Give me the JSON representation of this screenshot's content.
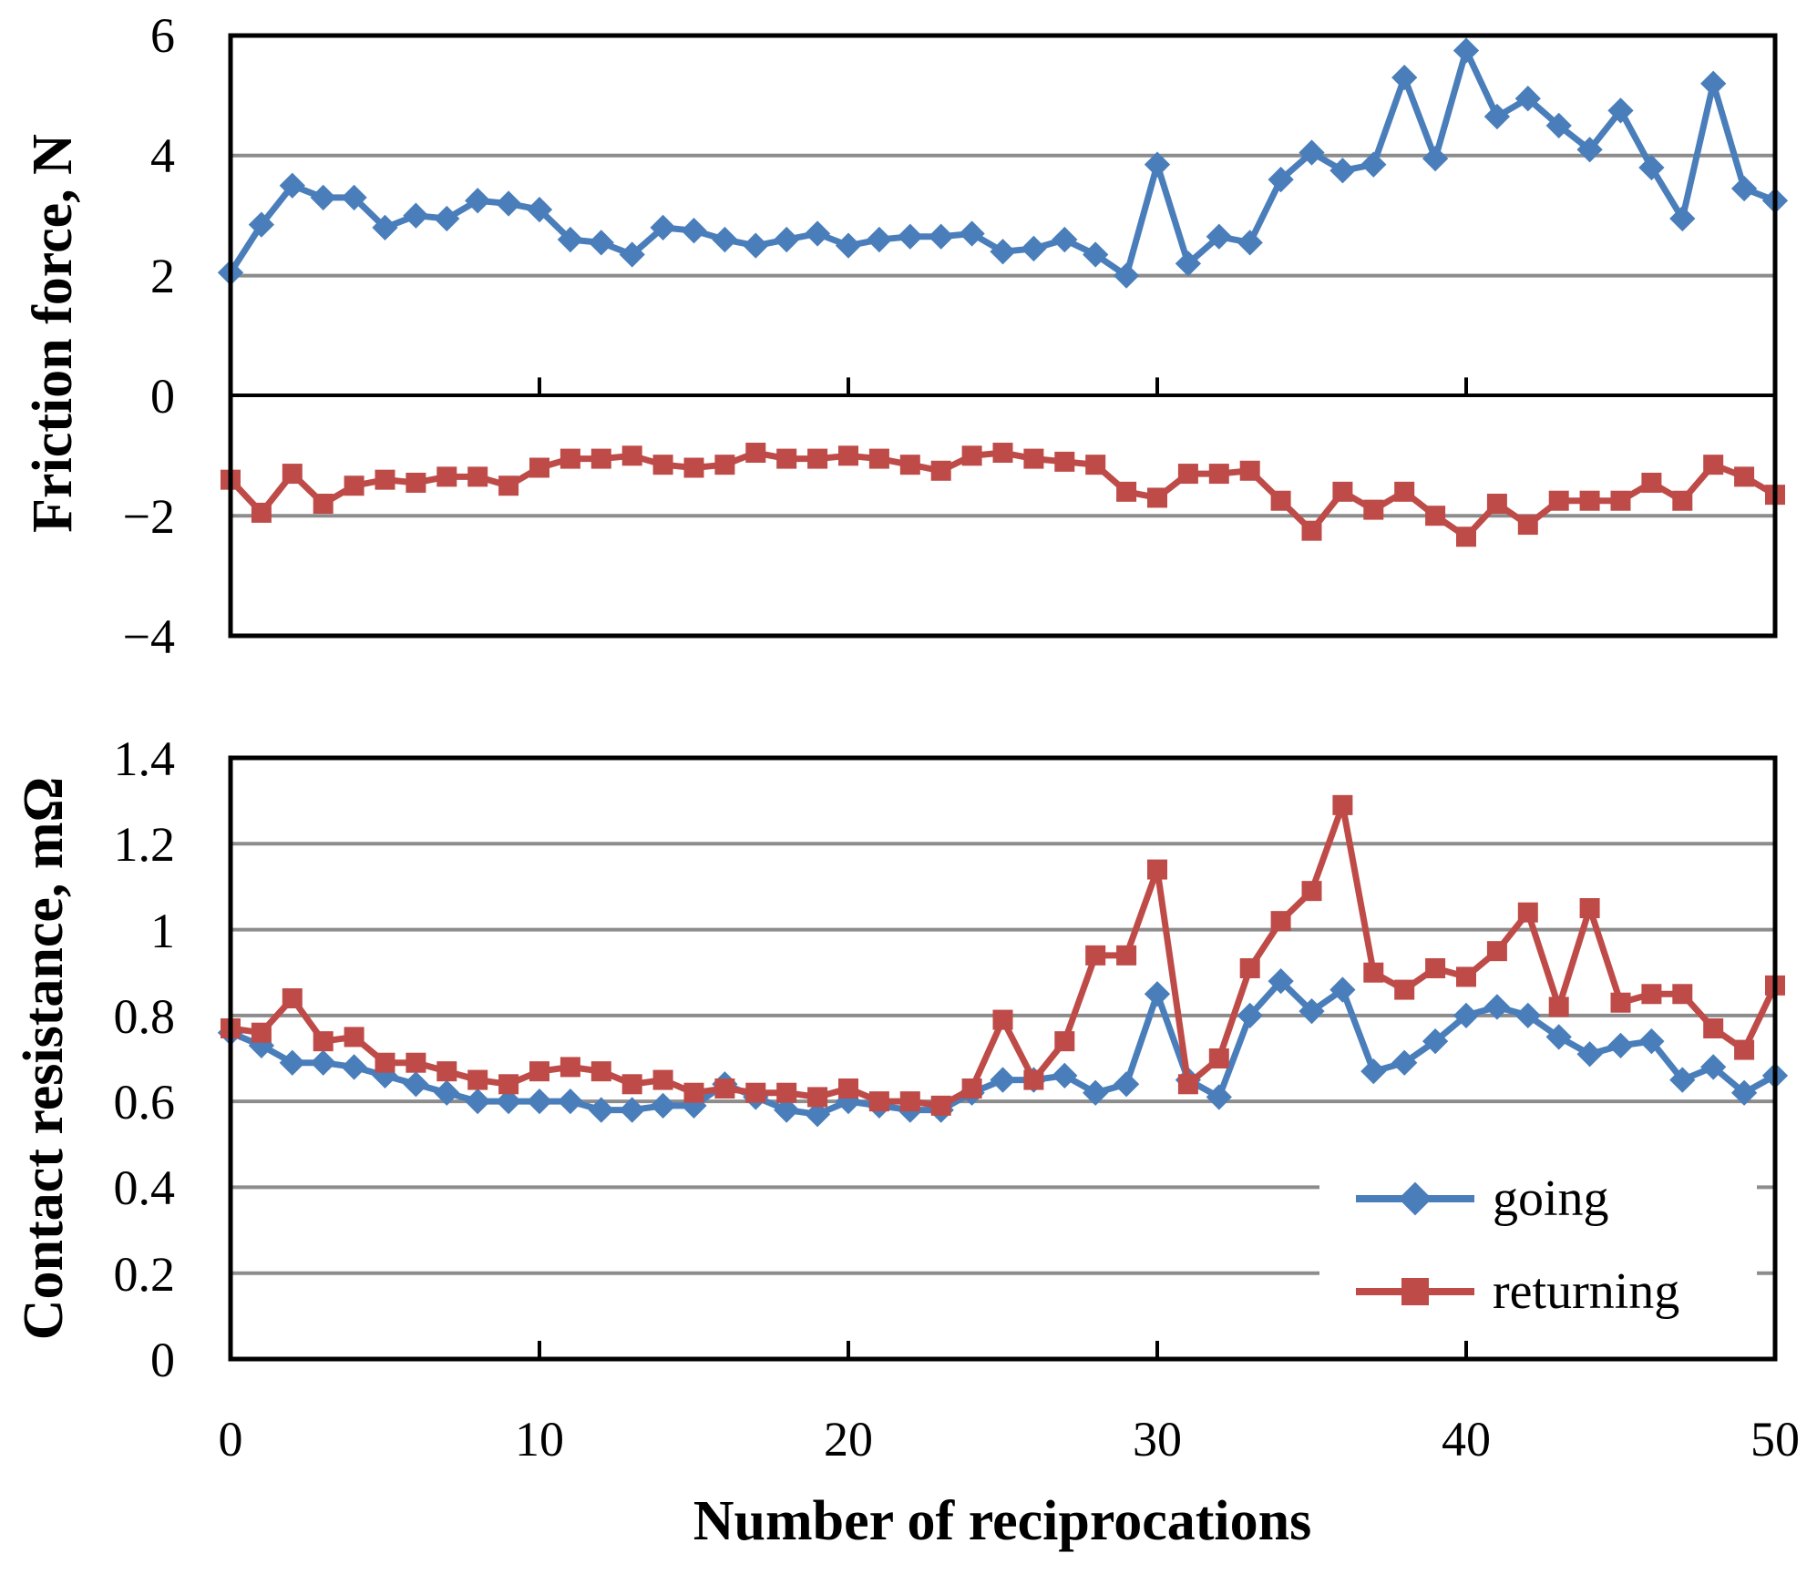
{
  "chart_data": [
    {
      "type": "line",
      "ylabel": "Friction force, N",
      "xlim": [
        0,
        50
      ],
      "ylim": [
        -4,
        6
      ],
      "yticks": [
        6,
        4,
        2,
        0,
        -2,
        -4
      ],
      "ytick_labels": [
        "6",
        "4",
        "2",
        "0",
        "−2",
        "−4"
      ],
      "xticks": [
        10,
        20,
        30,
        40
      ],
      "grid": true,
      "series": [
        {
          "name": "going",
          "color": "#4a7ebb",
          "marker": "diamond",
          "values": [
            2.05,
            2.85,
            3.5,
            3.3,
            3.3,
            2.8,
            3.0,
            2.95,
            3.25,
            3.2,
            3.1,
            2.6,
            2.55,
            2.35,
            2.8,
            2.75,
            2.6,
            2.5,
            2.6,
            2.7,
            2.5,
            2.6,
            2.65,
            2.65,
            2.7,
            2.4,
            2.45,
            2.6,
            2.35,
            2.0,
            3.85,
            2.2,
            2.65,
            2.55,
            3.6,
            4.05,
            3.75,
            3.85,
            5.3,
            3.95,
            5.75,
            4.65,
            4.95,
            4.5,
            4.1,
            4.75,
            3.8,
            2.95,
            5.2,
            3.45,
            3.25
          ]
        },
        {
          "name": "returning",
          "color": "#be4b48",
          "marker": "square",
          "values": [
            -1.4,
            -1.95,
            -1.3,
            -1.8,
            -1.5,
            -1.4,
            -1.45,
            -1.35,
            -1.35,
            -1.5,
            -1.2,
            -1.05,
            -1.05,
            -1.0,
            -1.15,
            -1.2,
            -1.15,
            -0.95,
            -1.05,
            -1.05,
            -1.0,
            -1.05,
            -1.15,
            -1.25,
            -1.0,
            -0.95,
            -1.05,
            -1.1,
            -1.15,
            -1.6,
            -1.7,
            -1.3,
            -1.3,
            -1.25,
            -1.75,
            -2.25,
            -1.6,
            -1.9,
            -1.6,
            -2.0,
            -2.35,
            -1.8,
            -2.15,
            -1.75,
            -1.75,
            -1.75,
            -1.45,
            -1.75,
            -1.15,
            -1.35,
            -1.65
          ]
        }
      ]
    },
    {
      "type": "line",
      "ylabel": "Contact resistance, mΩ",
      "xlabel": "Number of reciprocations",
      "xlim": [
        0,
        50
      ],
      "ylim": [
        0,
        1.4
      ],
      "yticks": [
        1.4,
        1.2,
        1,
        0.8,
        0.6,
        0.4,
        0.2,
        0
      ],
      "ytick_labels": [
        "1.4",
        "1.2",
        "1",
        "0.8",
        "0.6",
        "0.4",
        "0.2",
        "0"
      ],
      "xticks": [
        10,
        20,
        30,
        40
      ],
      "xtick_labels": [
        "0",
        "10",
        "20",
        "30",
        "40",
        "50"
      ],
      "xtick_values": [
        0,
        10,
        20,
        30,
        40,
        50
      ],
      "grid": true,
      "legend_position": "bottom-right",
      "legend": [
        "going",
        "returning"
      ],
      "series": [
        {
          "name": "going",
          "color": "#4a7ebb",
          "marker": "diamond",
          "values": [
            0.76,
            0.73,
            0.69,
            0.69,
            0.68,
            0.66,
            0.64,
            0.62,
            0.6,
            0.6,
            0.6,
            0.6,
            0.58,
            0.58,
            0.59,
            0.59,
            0.64,
            0.61,
            0.58,
            0.57,
            0.6,
            0.59,
            0.58,
            0.58,
            0.62,
            0.65,
            0.65,
            0.66,
            0.62,
            0.64,
            0.85,
            0.65,
            0.61,
            0.8,
            0.88,
            0.81,
            0.86,
            0.67,
            0.69,
            0.74,
            0.8,
            0.82,
            0.8,
            0.75,
            0.71,
            0.73,
            0.74,
            0.65,
            0.68,
            0.62,
            0.66
          ]
        },
        {
          "name": "returning",
          "color": "#be4b48",
          "marker": "square",
          "values": [
            0.77,
            0.76,
            0.84,
            0.74,
            0.75,
            0.69,
            0.69,
            0.67,
            0.65,
            0.64,
            0.67,
            0.68,
            0.67,
            0.64,
            0.65,
            0.62,
            0.63,
            0.62,
            0.62,
            0.61,
            0.63,
            0.6,
            0.6,
            0.59,
            0.63,
            0.79,
            0.65,
            0.74,
            0.94,
            0.94,
            1.14,
            0.64,
            0.7,
            0.91,
            1.02,
            1.09,
            1.29,
            0.9,
            0.86,
            0.91,
            0.89,
            0.95,
            1.04,
            0.82,
            1.05,
            0.83,
            0.85,
            0.85,
            0.77,
            0.72,
            0.87
          ]
        }
      ]
    }
  ]
}
